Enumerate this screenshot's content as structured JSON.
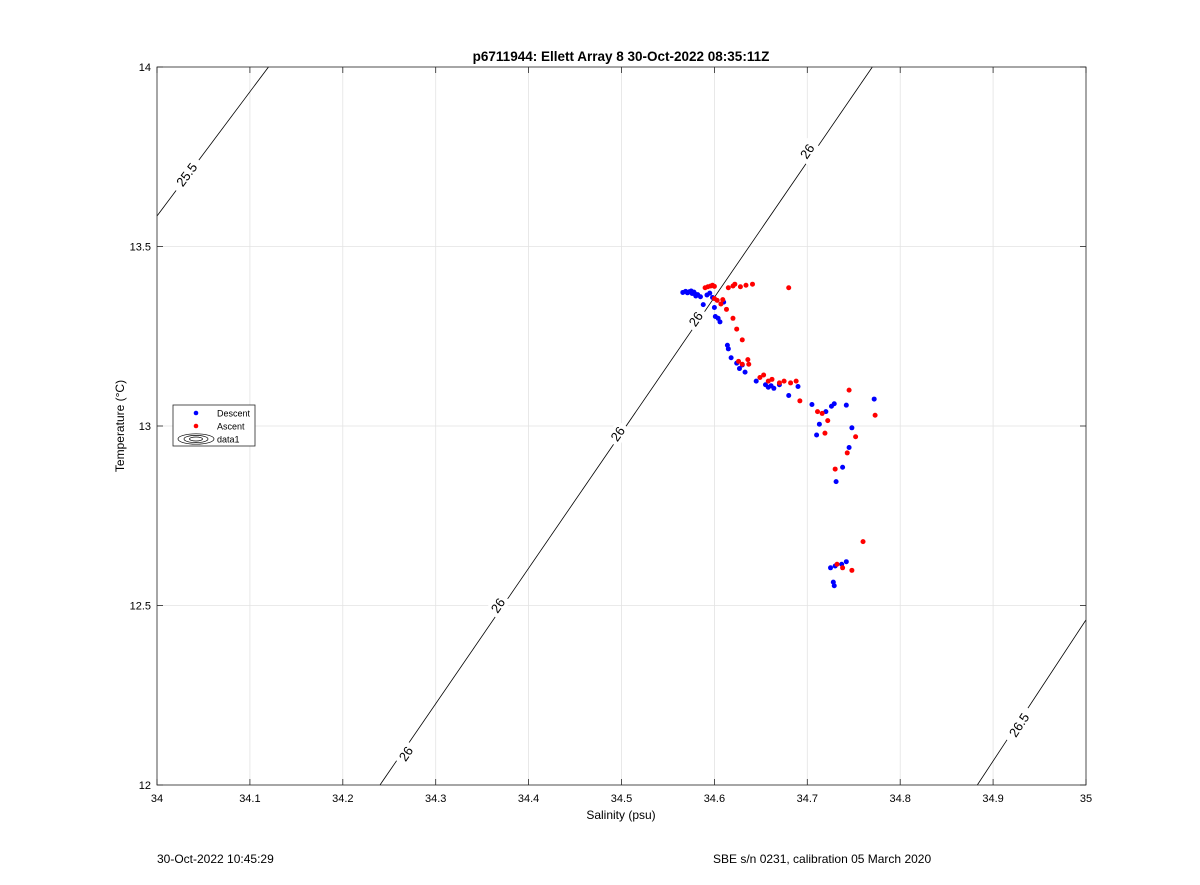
{
  "chart_data": {
    "type": "scatter",
    "title": "p6711944: Ellett Array 8 30-Oct-2022 08:35:11Z",
    "xlabel": "Salinity (psu)",
    "ylabel": "Temperature (°C)",
    "xlim": [
      34,
      35
    ],
    "ylim": [
      12,
      14
    ],
    "xticks": [
      34,
      34.1,
      34.2,
      34.3,
      34.4,
      34.5,
      34.6,
      34.7,
      34.8,
      34.9,
      35
    ],
    "xtick_labels": [
      "34",
      "34.1",
      "34.2",
      "34.3",
      "34.4",
      "34.5",
      "34.6",
      "34.7",
      "34.8",
      "34.9",
      "35"
    ],
    "yticks": [
      12,
      12.5,
      13,
      13.5,
      14
    ],
    "ytick_labels": [
      "12",
      "12.5",
      "13",
      "13.5",
      "14"
    ],
    "grid": true,
    "legend_position": "left",
    "legend": [
      "Descent",
      "Ascent",
      "data1"
    ],
    "colors": {
      "descent": "#0000ff",
      "ascent": "#ff0000",
      "contour": "#000000",
      "grid": "#e3e3e3",
      "axis": "#262626"
    },
    "series": [
      {
        "name": "Descent",
        "points": [
          [
            34.566,
            13.372
          ],
          [
            34.569,
            13.375
          ],
          [
            34.571,
            13.371
          ],
          [
            34.573,
            13.374
          ],
          [
            34.575,
            13.376
          ],
          [
            34.576,
            13.369
          ],
          [
            34.578,
            13.373
          ],
          [
            34.579,
            13.368
          ],
          [
            34.58,
            13.362
          ],
          [
            34.582,
            13.366
          ],
          [
            34.585,
            13.36
          ],
          [
            34.588,
            13.338
          ],
          [
            34.592,
            13.365
          ],
          [
            34.595,
            13.37
          ],
          [
            34.598,
            13.358
          ],
          [
            34.6,
            13.33
          ],
          [
            34.601,
            13.305
          ],
          [
            34.604,
            13.3
          ],
          [
            34.606,
            13.29
          ],
          [
            34.61,
            13.345
          ],
          [
            34.614,
            13.225
          ],
          [
            34.615,
            13.215
          ],
          [
            34.618,
            13.19
          ],
          [
            34.624,
            13.175
          ],
          [
            34.627,
            13.16
          ],
          [
            34.63,
            13.17
          ],
          [
            34.633,
            13.15
          ],
          [
            34.645,
            13.125
          ],
          [
            34.655,
            13.115
          ],
          [
            34.658,
            13.108
          ],
          [
            34.661,
            13.112
          ],
          [
            34.664,
            13.105
          ],
          [
            34.67,
            13.115
          ],
          [
            34.68,
            13.085
          ],
          [
            34.69,
            13.11
          ],
          [
            34.705,
            13.06
          ],
          [
            34.71,
            12.975
          ],
          [
            34.713,
            13.005
          ],
          [
            34.72,
            13.04
          ],
          [
            34.726,
            13.055
          ],
          [
            34.729,
            13.062
          ],
          [
            34.731,
            12.845
          ],
          [
            34.738,
            12.885
          ],
          [
            34.742,
            13.058
          ],
          [
            34.745,
            12.94
          ],
          [
            34.748,
            12.995
          ],
          [
            34.772,
            13.075
          ],
          [
            34.725,
            12.605
          ],
          [
            34.728,
            12.565
          ],
          [
            34.729,
            12.555
          ],
          [
            34.73,
            12.61
          ],
          [
            34.737,
            12.615
          ],
          [
            34.742,
            12.622
          ]
        ]
      },
      {
        "name": "Ascent",
        "points": [
          [
            34.59,
            13.385
          ],
          [
            34.593,
            13.388
          ],
          [
            34.596,
            13.39
          ],
          [
            34.598,
            13.392
          ],
          [
            34.6,
            13.389
          ],
          [
            34.6,
            13.355
          ],
          [
            34.603,
            13.35
          ],
          [
            34.607,
            13.34
          ],
          [
            34.609,
            13.352
          ],
          [
            34.615,
            13.385
          ],
          [
            34.62,
            13.39
          ],
          [
            34.622,
            13.395
          ],
          [
            34.628,
            13.388
          ],
          [
            34.634,
            13.392
          ],
          [
            34.641,
            13.395
          ],
          [
            34.613,
            13.325
          ],
          [
            34.62,
            13.3
          ],
          [
            34.624,
            13.27
          ],
          [
            34.63,
            13.24
          ],
          [
            34.626,
            13.18
          ],
          [
            34.63,
            13.172
          ],
          [
            34.636,
            13.185
          ],
          [
            34.637,
            13.172
          ],
          [
            34.649,
            13.135
          ],
          [
            34.653,
            13.142
          ],
          [
            34.658,
            13.125
          ],
          [
            34.662,
            13.13
          ],
          [
            34.67,
            13.12
          ],
          [
            34.675,
            13.125
          ],
          [
            34.682,
            13.12
          ],
          [
            34.688,
            13.125
          ],
          [
            34.692,
            13.07
          ],
          [
            34.711,
            13.04
          ],
          [
            34.716,
            13.035
          ],
          [
            34.722,
            13.015
          ],
          [
            34.719,
            12.98
          ],
          [
            34.73,
            12.88
          ],
          [
            34.743,
            12.925
          ],
          [
            34.745,
            13.1
          ],
          [
            34.752,
            12.97
          ],
          [
            34.773,
            13.03
          ],
          [
            34.68,
            13.385
          ],
          [
            34.732,
            12.615
          ],
          [
            34.738,
            12.605
          ],
          [
            34.748,
            12.598
          ],
          [
            34.76,
            12.678
          ]
        ]
      }
    ],
    "contours": [
      {
        "level": "25.5",
        "from": [
          34,
          13.585
        ],
        "to": [
          34.12,
          14
        ]
      },
      {
        "level": "26",
        "from": [
          34.24,
          12
        ],
        "to": [
          34.77,
          14
        ]
      },
      {
        "level": "26.5",
        "from": [
          34.883,
          12
        ],
        "to": [
          35,
          12.46
        ]
      }
    ],
    "contour_labels": [
      {
        "text": "25.5",
        "at": [
          34.032,
          13.7
        ]
      },
      {
        "text": "26",
        "at": [
          34.7,
          13.765
        ]
      },
      {
        "text": "26",
        "at": [
          34.58,
          13.298
        ]
      },
      {
        "text": "26",
        "at": [
          34.496,
          12.978
        ]
      },
      {
        "text": "26",
        "at": [
          34.367,
          12.5
        ]
      },
      {
        "text": "26",
        "at": [
          34.268,
          12.087
        ]
      },
      {
        "text": "26.5",
        "at": [
          34.928,
          12.167
        ]
      }
    ]
  },
  "footer": {
    "timestamp": "30-Oct-2022 10:45:29",
    "instrument": "SBE s/n 0231, calibration 05 March 2020"
  }
}
